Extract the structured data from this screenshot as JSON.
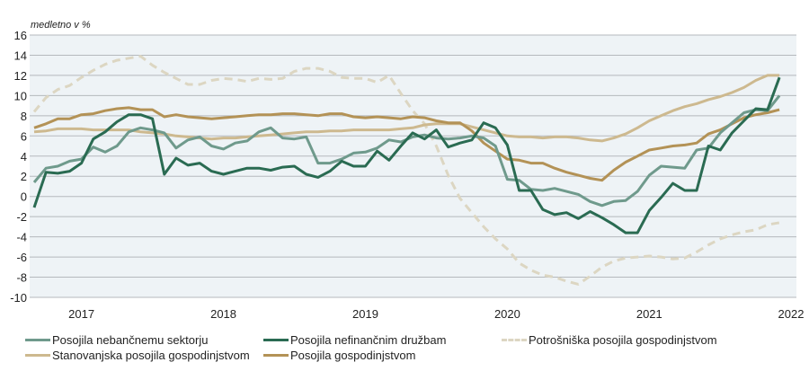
{
  "chart_data": {
    "type": "line",
    "title": "",
    "unit_label": "medletno v %",
    "xlabel": "",
    "ylabel": "medletno v %",
    "ylim": [
      -10,
      16
    ],
    "yticks": [
      16,
      14,
      12,
      10,
      8,
      6,
      4,
      2,
      0,
      -2,
      -4,
      -6,
      -8,
      -10
    ],
    "xticks": [
      "2017",
      "2018",
      "2019",
      "2020",
      "2021",
      "2022"
    ],
    "grid": true,
    "legend_position": "bottom",
    "x_start": "2016-09",
    "frequency": "monthly",
    "series": [
      {
        "name": "Posojila nebančnemu sektorju",
        "color": "#6f9a8c",
        "dash": false,
        "values": [
          1.4,
          2.8,
          3.0,
          3.5,
          3.7,
          4.9,
          4.4,
          5.0,
          6.4,
          6.8,
          6.6,
          6.3,
          4.8,
          5.6,
          5.9,
          5.0,
          4.7,
          5.3,
          5.5,
          6.4,
          6.8,
          5.8,
          5.7,
          5.9,
          3.3,
          3.3,
          3.7,
          4.3,
          4.4,
          4.8,
          5.6,
          5.4,
          5.9,
          6.1,
          5.8,
          5.7,
          5.8,
          6.0,
          5.8,
          5.0,
          1.7,
          1.6,
          0.7,
          0.6,
          0.8,
          0.5,
          0.2,
          -0.5,
          -0.9,
          -0.5,
          -0.4,
          0.5,
          2.1,
          3.0,
          2.9,
          2.8,
          4.6,
          4.8,
          6.3,
          7.3,
          8.3,
          8.6,
          8.5,
          10.0
        ]
      },
      {
        "name": "Posojila nefinančnim družbam",
        "color": "#2a6b52",
        "dash": false,
        "values": [
          -1.1,
          2.4,
          2.3,
          2.5,
          3.3,
          5.7,
          6.4,
          7.4,
          8.1,
          8.1,
          7.7,
          2.2,
          3.8,
          3.1,
          3.3,
          2.5,
          2.2,
          2.5,
          2.8,
          2.8,
          2.6,
          2.9,
          3.0,
          2.2,
          1.9,
          2.5,
          3.5,
          3.0,
          3.0,
          4.5,
          3.6,
          5.0,
          6.3,
          5.7,
          6.6,
          4.9,
          5.3,
          5.6,
          7.3,
          6.8,
          5.1,
          0.6,
          0.6,
          -1.3,
          -1.8,
          -1.6,
          -2.2,
          -1.5,
          -2.1,
          -2.8,
          -3.6,
          -3.6,
          -1.4,
          -0.1,
          1.3,
          0.6,
          0.6,
          5.0,
          4.6,
          6.3,
          7.5,
          8.7,
          8.6,
          11.8
        ]
      },
      {
        "name": "Potrošniška posojila gospodinjstvom",
        "color": "#dcd6c2",
        "dash": true,
        "values": [
          8.4,
          9.8,
          10.6,
          11.0,
          11.8,
          12.5,
          13.1,
          13.5,
          13.7,
          13.9,
          13.0,
          12.3,
          11.7,
          11.1,
          11.1,
          11.5,
          11.7,
          11.6,
          11.4,
          11.7,
          11.6,
          11.7,
          12.4,
          12.7,
          12.7,
          12.4,
          11.8,
          11.7,
          11.7,
          11.3,
          12.0,
          10.2,
          8.5,
          7.2,
          5.0,
          2.1,
          -0.2,
          -1.6,
          -3.0,
          -4.2,
          -5.2,
          -6.6,
          -7.3,
          -7.8,
          -8.0,
          -8.4,
          -8.7,
          -7.9,
          -7.0,
          -6.4,
          -6.1,
          -6.0,
          -5.9,
          -6.0,
          -6.2,
          -6.1,
          -5.5,
          -4.8,
          -4.2,
          -3.8,
          -3.5,
          -3.3,
          -2.8,
          -2.6
        ]
      },
      {
        "name": "Stanovanjska posojila gospodinjstvom",
        "color": "#cdb98f",
        "dash": false,
        "values": [
          6.4,
          6.5,
          6.7,
          6.7,
          6.7,
          6.6,
          6.6,
          6.6,
          6.6,
          6.4,
          6.3,
          6.2,
          6.0,
          5.9,
          5.8,
          5.7,
          5.8,
          5.8,
          5.9,
          6.0,
          6.1,
          6.2,
          6.3,
          6.4,
          6.4,
          6.5,
          6.5,
          6.6,
          6.6,
          6.6,
          6.6,
          6.7,
          6.8,
          7.1,
          7.2,
          7.2,
          7.2,
          6.9,
          6.6,
          6.3,
          6.0,
          5.9,
          5.9,
          5.8,
          5.9,
          5.9,
          5.8,
          5.6,
          5.5,
          5.8,
          6.2,
          6.8,
          7.5,
          8.0,
          8.5,
          8.9,
          9.2,
          9.6,
          9.9,
          10.3,
          10.8,
          11.5,
          12.0,
          12.0
        ]
      },
      {
        "name": "Posojila gospodinjstvom",
        "color": "#b39256",
        "dash": false,
        "values": [
          6.8,
          7.2,
          7.7,
          7.7,
          8.1,
          8.2,
          8.5,
          8.7,
          8.8,
          8.6,
          8.6,
          7.9,
          8.1,
          7.9,
          7.8,
          7.7,
          7.8,
          7.9,
          8.0,
          8.1,
          8.1,
          8.2,
          8.2,
          8.1,
          8.0,
          8.2,
          8.2,
          7.9,
          7.8,
          7.9,
          7.8,
          7.7,
          7.9,
          7.8,
          7.5,
          7.3,
          7.3,
          6.5,
          5.3,
          4.5,
          3.7,
          3.6,
          3.3,
          3.3,
          2.8,
          2.4,
          2.1,
          1.8,
          1.6,
          2.6,
          3.4,
          4.0,
          4.6,
          4.8,
          5.0,
          5.1,
          5.3,
          6.2,
          6.6,
          7.2,
          7.8,
          8.1,
          8.3,
          8.6
        ]
      }
    ]
  }
}
